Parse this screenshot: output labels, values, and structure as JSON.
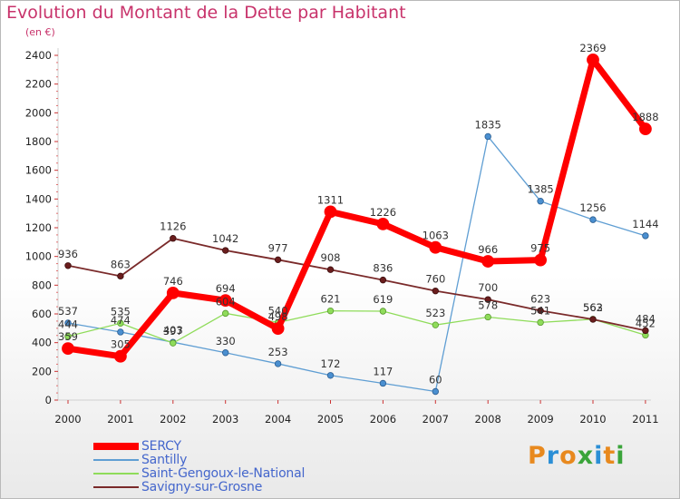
{
  "title": "Evolution du Montant de la Dette par Habitant",
  "subtitle": "(en €)",
  "logo_text": "Proxiti",
  "logo_colors": [
    "#e8891e",
    "#2b8fd6",
    "#e8891e",
    "#3aa43a",
    "#2b8fd6",
    "#e8891e",
    "#3aa43a"
  ],
  "chart_data": {
    "type": "line",
    "title": "Evolution du Montant de la Dette par Habitant",
    "ylabel": "(en €)",
    "x": [
      "2000",
      "2001",
      "2002",
      "2003",
      "2004",
      "2005",
      "2006",
      "2007",
      "2008",
      "2009",
      "2010",
      "2011"
    ],
    "y_ticks": [
      "0",
      "200",
      "400",
      "600",
      "800",
      "1000",
      "1200",
      "1400",
      "1600",
      "1800",
      "2000",
      "2200",
      "2400"
    ],
    "ylim": [
      0,
      2400
    ],
    "grid": false,
    "legend_position": "bottom-left",
    "series": [
      {
        "name": "SERCY",
        "color": "#ff0000",
        "values": [
          359,
          305,
          746,
          694,
          498,
          1311,
          1226,
          1063,
          966,
          975,
          2369,
          1888
        ],
        "labels": [
          "359",
          "305",
          "746",
          "694",
          "498",
          "1311",
          "1226",
          "1063",
          "966",
          "975",
          "2369",
          "1888"
        ]
      },
      {
        "name": "Santilly",
        "color": "#5f9ed3",
        "values": [
          537,
          474,
          403,
          330,
          253,
          172,
          117,
          60,
          1835,
          1385,
          1256,
          1144
        ],
        "labels": [
          "537",
          "474",
          "403",
          "330",
          "253",
          "172",
          "117",
          "60",
          "1835",
          "1385",
          "1256",
          "1144"
        ]
      },
      {
        "name": "Saint-Gengoux-le-National",
        "color": "#8fdc5a",
        "values": [
          444,
          535,
          397,
          604,
          540,
          621,
          619,
          523,
          578,
          541,
          563,
          452
        ],
        "labels": [
          "444",
          "535",
          "397",
          "604",
          "540",
          "621",
          "619",
          "523",
          "578",
          "541",
          "563",
          "452"
        ]
      },
      {
        "name": "Savigny-sur-Grosne",
        "color": "#7a2a2a",
        "values": [
          936,
          863,
          1126,
          1042,
          977,
          908,
          836,
          760,
          700,
          623,
          562,
          484
        ],
        "labels": [
          "936",
          "863",
          "1126",
          "1042",
          "977",
          "908",
          "836",
          "760",
          "700",
          "623",
          "562",
          "484"
        ]
      }
    ]
  }
}
